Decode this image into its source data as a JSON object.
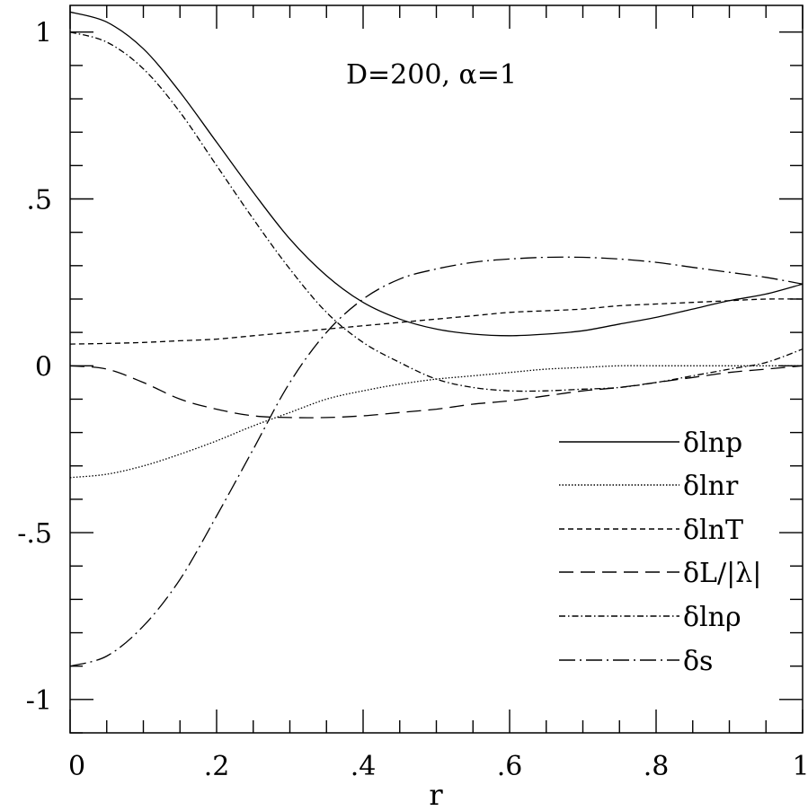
{
  "chart_data": {
    "type": "line",
    "title": "",
    "annotation": "D=200,  α=1",
    "xlabel": "r",
    "ylabel": "",
    "xlim": [
      0,
      1
    ],
    "ylim": [
      -1.1,
      1.08
    ],
    "grid": false,
    "legend_position": "lower-right",
    "x_ticks": [
      {
        "value": 0,
        "label": "0"
      },
      {
        "value": 0.2,
        "label": ".2"
      },
      {
        "value": 0.4,
        "label": ".4"
      },
      {
        "value": 0.6,
        "label": ".6"
      },
      {
        "value": 0.8,
        "label": ".8"
      },
      {
        "value": 1,
        "label": "1"
      }
    ],
    "y_ticks": [
      {
        "value": 1,
        "label": "1"
      },
      {
        "value": 0.5,
        "label": ".5"
      },
      {
        "value": 0,
        "label": "0"
      },
      {
        "value": -0.5,
        "label": "-.5"
      },
      {
        "value": -1,
        "label": "-1"
      }
    ],
    "x": [
      0,
      0.05,
      0.1,
      0.15,
      0.2,
      0.25,
      0.3,
      0.35,
      0.4,
      0.45,
      0.5,
      0.55,
      0.6,
      0.65,
      0.7,
      0.75,
      0.8,
      0.85,
      0.9,
      0.95,
      1.0
    ],
    "series": [
      {
        "name": "δlnp",
        "style": "solid",
        "values": [
          1.06,
          1.03,
          0.95,
          0.82,
          0.67,
          0.52,
          0.38,
          0.27,
          0.19,
          0.14,
          0.11,
          0.095,
          0.09,
          0.095,
          0.105,
          0.125,
          0.145,
          0.17,
          0.195,
          0.215,
          0.245
        ]
      },
      {
        "name": "δlnr",
        "style": "dotted",
        "values": [
          -0.335,
          -0.325,
          -0.3,
          -0.265,
          -0.225,
          -0.18,
          -0.14,
          -0.1,
          -0.075,
          -0.055,
          -0.04,
          -0.03,
          -0.02,
          -0.01,
          -0.005,
          0.0,
          0.0,
          0.0,
          0.0,
          0.0,
          0.0
        ]
      },
      {
        "name": "δlnT",
        "style": "short-dash",
        "values": [
          0.065,
          0.067,
          0.07,
          0.075,
          0.08,
          0.09,
          0.1,
          0.11,
          0.12,
          0.13,
          0.14,
          0.15,
          0.16,
          0.165,
          0.17,
          0.18,
          0.185,
          0.19,
          0.195,
          0.2,
          0.2
        ]
      },
      {
        "name": "δL/|λ|",
        "style": "long-dash",
        "values": [
          0.0,
          -0.01,
          -0.05,
          -0.1,
          -0.13,
          -0.15,
          -0.155,
          -0.155,
          -0.15,
          -0.14,
          -0.13,
          -0.115,
          -0.105,
          -0.09,
          -0.075,
          -0.065,
          -0.05,
          -0.035,
          -0.02,
          -0.01,
          0.0
        ]
      },
      {
        "name": "δlnρ",
        "style": "dot-short-dash",
        "values": [
          1.0,
          0.97,
          0.89,
          0.76,
          0.6,
          0.44,
          0.29,
          0.16,
          0.07,
          0.01,
          -0.04,
          -0.065,
          -0.075,
          -0.075,
          -0.07,
          -0.065,
          -0.05,
          -0.03,
          -0.01,
          0.01,
          0.05
        ]
      },
      {
        "name": "δs",
        "style": "dot-long-dash",
        "values": [
          -0.9,
          -0.87,
          -0.78,
          -0.64,
          -0.45,
          -0.25,
          -0.05,
          0.1,
          0.2,
          0.26,
          0.29,
          0.31,
          0.32,
          0.325,
          0.325,
          0.32,
          0.31,
          0.295,
          0.28,
          0.265,
          0.245
        ]
      }
    ]
  }
}
